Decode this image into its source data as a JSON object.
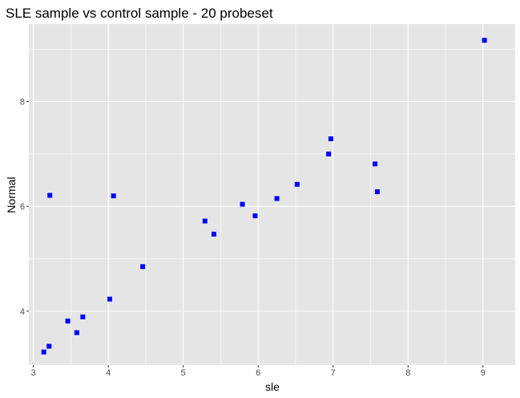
{
  "chart_data": {
    "type": "scatter",
    "title": "SLE sample vs control sample - 20 probeset",
    "xlabel": "sle",
    "ylabel": "Normal",
    "xlim": [
      2.94,
      9.43
    ],
    "ylim": [
      2.97,
      9.48
    ],
    "x_ticks": [
      3,
      4,
      5,
      6,
      7,
      8,
      9
    ],
    "y_ticks": [
      4,
      6,
      8
    ],
    "grid": true,
    "point_color": "#0000ff",
    "panel_background": "#e5e5e5",
    "grid_color": "#ffffff",
    "points": [
      {
        "x": 3.14,
        "y": 3.22
      },
      {
        "x": 3.21,
        "y": 3.33
      },
      {
        "x": 3.22,
        "y": 6.21
      },
      {
        "x": 3.46,
        "y": 3.81
      },
      {
        "x": 3.58,
        "y": 3.59
      },
      {
        "x": 3.66,
        "y": 3.89
      },
      {
        "x": 4.02,
        "y": 4.23
      },
      {
        "x": 4.07,
        "y": 6.2
      },
      {
        "x": 4.46,
        "y": 4.85
      },
      {
        "x": 5.29,
        "y": 5.72
      },
      {
        "x": 5.41,
        "y": 5.47
      },
      {
        "x": 5.79,
        "y": 6.04
      },
      {
        "x": 5.96,
        "y": 5.82
      },
      {
        "x": 6.25,
        "y": 6.15
      },
      {
        "x": 6.52,
        "y": 6.42
      },
      {
        "x": 6.94,
        "y": 7.0
      },
      {
        "x": 6.97,
        "y": 7.29
      },
      {
        "x": 7.56,
        "y": 6.81
      },
      {
        "x": 7.59,
        "y": 6.28
      },
      {
        "x": 9.02,
        "y": 9.17
      }
    ]
  }
}
